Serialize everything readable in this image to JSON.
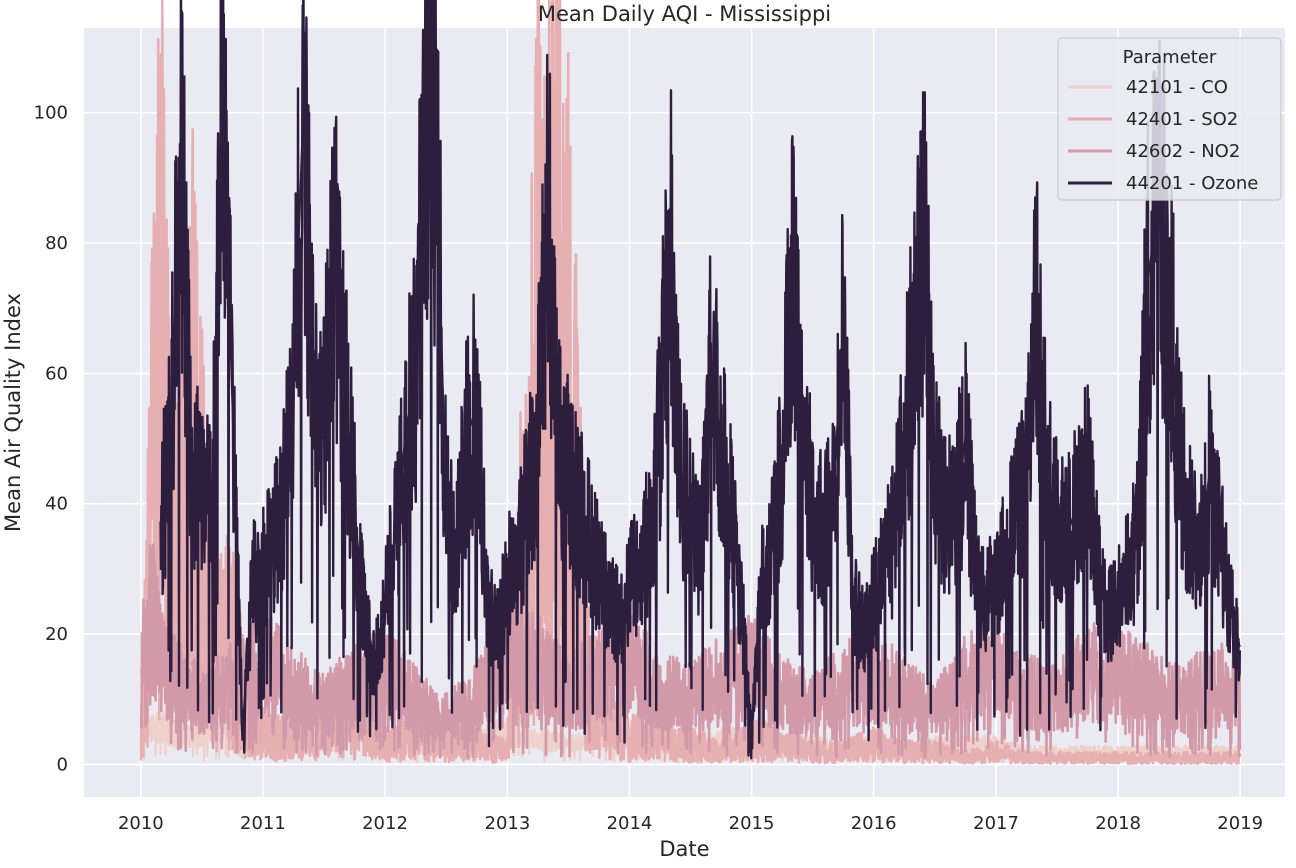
{
  "chart_data": {
    "type": "line",
    "title": "Mean Daily AQI - Mississippi",
    "xlabel": "Date",
    "ylabel": "Mean Air Quality Index",
    "x_range": [
      "2009-07-15",
      "2019-05-15"
    ],
    "ylim": [
      -5,
      113
    ],
    "x_ticks": [
      "2010",
      "2011",
      "2012",
      "2013",
      "2014",
      "2015",
      "2016",
      "2017",
      "2018",
      "2019"
    ],
    "y_ticks": [
      0,
      20,
      40,
      60,
      80,
      100
    ],
    "grid": true,
    "legend": {
      "title": "Parameter",
      "placement": "top-right",
      "entries": [
        "42101 - CO",
        "42401 - SO2",
        "42602 - NO2",
        "44201 - Ozone"
      ]
    },
    "colors": {
      "background": "#eaeaf2",
      "grid": "#ffffff",
      "co": "#efd1cc",
      "so2": "#e6afb2",
      "no2": "#d29aa9",
      "ozone": "#2d1e3e"
    },
    "series": [
      {
        "name": "42101 - CO",
        "x": [
          "2010-01-01",
          "2010-03-01",
          "2010-05-01",
          "2010-07-01",
          "2010-09-01",
          "2010-11-01",
          "2011-01-01",
          "2011-04-01",
          "2011-07-01",
          "2011-10-01",
          "2012-01-01",
          "2012-04-01",
          "2012-07-01",
          "2012-09-01",
          "2013-01-01",
          "2013-04-01",
          "2013-07-01",
          "2013-10-01",
          "2014-01-01",
          "2014-04-01",
          "2014-07-01",
          "2014-10-01",
          "2015-01-01",
          "2015-04-01",
          "2015-07-01",
          "2015-10-01",
          "2016-01-01",
          "2016-04-01",
          "2016-07-01",
          "2016-10-01",
          "2017-01-01",
          "2017-04-01",
          "2017-07-01",
          "2017-10-01",
          "2018-01-01",
          "2018-04-01",
          "2018-07-01",
          "2018-10-01",
          "2018-12-31"
        ],
        "values": [
          5,
          6,
          4,
          5,
          7,
          6,
          5,
          4,
          3,
          5,
          4,
          3,
          3,
          4,
          5,
          4,
          3,
          4,
          4,
          3,
          3,
          4,
          4,
          3,
          3,
          3,
          3,
          2,
          3,
          3,
          3,
          2,
          2,
          2,
          2,
          2,
          2,
          2,
          2
        ]
      },
      {
        "name": "42401 - SO2",
        "x": [
          "2010-01-01",
          "2010-02-01",
          "2010-03-01",
          "2010-04-01",
          "2010-06-01",
          "2010-08-01",
          "2010-10-01",
          "2010-12-01",
          "2011-03-01",
          "2011-06-01",
          "2011-09-01",
          "2012-01-01",
          "2012-04-01",
          "2012-07-01",
          "2012-10-01",
          "2013-01-01",
          "2013-04-01",
          "2013-06-20",
          "2013-09-01",
          "2014-01-01",
          "2014-04-01",
          "2014-07-01",
          "2014-10-01",
          "2015-01-01",
          "2015-04-01",
          "2015-07-01",
          "2015-10-01",
          "2016-01-01",
          "2016-04-01",
          "2016-07-01",
          "2016-10-01",
          "2017-01-01",
          "2017-04-01",
          "2017-07-01",
          "2017-10-01",
          "2018-01-01",
          "2018-04-01",
          "2018-07-01",
          "2018-10-01",
          "2018-12-31"
        ],
        "values": [
          3,
          40,
          72,
          30,
          54,
          20,
          18,
          5,
          4,
          6,
          8,
          3,
          5,
          4,
          3,
          2,
          65,
          69,
          12,
          4,
          5,
          3,
          2,
          4,
          3,
          2,
          2,
          3,
          2,
          2,
          1,
          2,
          1,
          1,
          1,
          1,
          1,
          1,
          1,
          1
        ]
      },
      {
        "name": "42602 - NO2",
        "x": [
          "2010-01-01",
          "2010-02-01",
          "2010-03-01",
          "2010-05-01",
          "2010-07-01",
          "2010-09-01",
          "2010-11-01",
          "2011-01-01",
          "2011-04-01",
          "2011-07-01",
          "2011-10-01",
          "2012-01-01",
          "2012-04-01",
          "2012-07-01",
          "2012-10-01",
          "2013-01-01",
          "2013-04-01",
          "2013-07-01",
          "2013-10-01",
          "2014-01-01",
          "2014-04-01",
          "2014-07-01",
          "2014-10-01",
          "2015-01-01",
          "2015-04-01",
          "2015-07-01",
          "2015-10-01",
          "2016-01-01",
          "2016-04-01",
          "2016-07-01",
          "2016-10-01",
          "2017-01-01",
          "2017-04-01",
          "2017-07-01",
          "2017-10-01",
          "2018-01-01",
          "2018-04-01",
          "2018-07-01",
          "2018-10-01",
          "2018-12-31"
        ],
        "values": [
          14,
          24,
          16,
          12,
          10,
          11,
          14,
          16,
          12,
          9,
          12,
          14,
          10,
          7,
          10,
          18,
          15,
          11,
          14,
          15,
          12,
          10,
          13,
          15,
          11,
          9,
          12,
          14,
          11,
          8,
          13,
          15,
          11,
          10,
          14,
          14,
          12,
          10,
          12,
          12
        ]
      },
      {
        "name": "44201 - Ozone",
        "x": [
          "2010-03-01",
          "2010-04-01",
          "2010-05-01",
          "2010-06-01",
          "2010-07-01",
          "2010-08-01",
          "2010-09-01",
          "2010-10-01",
          "2010-11-01",
          "2010-12-01",
          "2011-01-01",
          "2011-02-01",
          "2011-03-01",
          "2011-04-01",
          "2011-05-01",
          "2011-06-01",
          "2011-07-01",
          "2011-08-01",
          "2011-09-01",
          "2011-10-01",
          "2011-11-01",
          "2011-12-01",
          "2012-01-01",
          "2012-02-01",
          "2012-03-01",
          "2012-04-01",
          "2012-05-01",
          "2012-06-01",
          "2012-07-01",
          "2012-08-01",
          "2012-09-01",
          "2012-10-01",
          "2012-11-01",
          "2012-12-01",
          "2013-01-01",
          "2013-02-01",
          "2013-03-01",
          "2013-04-01",
          "2013-05-01",
          "2013-06-01",
          "2013-07-01",
          "2013-08-01",
          "2013-09-01",
          "2013-10-01",
          "2013-11-01",
          "2013-12-01",
          "2014-01-01",
          "2014-02-01",
          "2014-03-01",
          "2014-04-01",
          "2014-05-01",
          "2014-06-01",
          "2014-07-01",
          "2014-08-01",
          "2014-09-01",
          "2014-10-01",
          "2014-11-01",
          "2014-12-01",
          "2015-01-01",
          "2015-02-01",
          "2015-03-01",
          "2015-04-01",
          "2015-05-01",
          "2015-06-01",
          "2015-07-01",
          "2015-08-01",
          "2015-09-01",
          "2015-10-01",
          "2015-11-01",
          "2015-12-01",
          "2016-01-01",
          "2016-02-01",
          "2016-03-01",
          "2016-04-01",
          "2016-05-01",
          "2016-06-01",
          "2016-07-01",
          "2016-08-01",
          "2016-09-01",
          "2016-10-01",
          "2016-11-01",
          "2016-12-01",
          "2017-01-01",
          "2017-02-01",
          "2017-03-01",
          "2017-04-01",
          "2017-05-01",
          "2017-06-01",
          "2017-07-01",
          "2017-08-01",
          "2017-09-01",
          "2017-10-01",
          "2017-11-01",
          "2017-12-01",
          "2018-01-01",
          "2018-02-01",
          "2018-03-01",
          "2018-04-01",
          "2018-05-01",
          "2018-06-01",
          "2018-07-01",
          "2018-08-01",
          "2018-09-01",
          "2018-10-01",
          "2018-11-01",
          "2018-12-01",
          "2018-12-31"
        ],
        "values": [
          36,
          50,
          97,
          45,
          42,
          38,
          108,
          56,
          5,
          28,
          30,
          33,
          40,
          55,
          100,
          60,
          50,
          81,
          60,
          40,
          22,
          15,
          25,
          35,
          50,
          60,
          103,
          98,
          40,
          32,
          50,
          55,
          25,
          20,
          28,
          32,
          40,
          50,
          87,
          50,
          45,
          40,
          35,
          30,
          25,
          22,
          28,
          30,
          35,
          50,
          85,
          45,
          40,
          32,
          60,
          50,
          38,
          25,
          5,
          28,
          32,
          45,
          76,
          50,
          40,
          35,
          40,
          67,
          25,
          20,
          25,
          30,
          35,
          50,
          65,
          79,
          45,
          40,
          38,
          50,
          30,
          25,
          28,
          32,
          38,
          45,
          72,
          45,
          38,
          35,
          40,
          45,
          30,
          22,
          25,
          30,
          35,
          75,
          85,
          76,
          48,
          38,
          30,
          45,
          35,
          25,
          18
        ]
      }
    ]
  }
}
